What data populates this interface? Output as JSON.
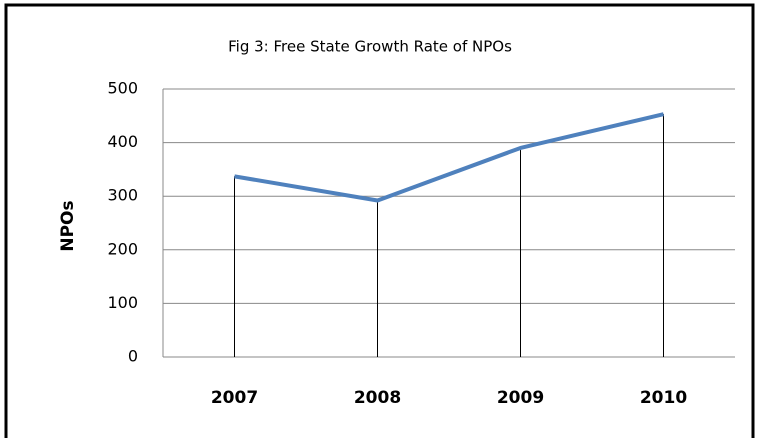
{
  "chart_data": {
    "type": "line",
    "title": "Fig 3: Free State Growth Rate of NPOs",
    "y_label": "NPOs",
    "categories": [
      "2007",
      "2008",
      "2009",
      "2010"
    ],
    "series": [
      {
        "name": "NPOs",
        "color": "#4f81bd",
        "values": [
          337,
          292,
          390,
          453
        ]
      }
    ],
    "ylim": [
      0,
      500
    ],
    "yticks": [
      0,
      100,
      200,
      300,
      400,
      500
    ],
    "grid": true,
    "drop_lines": true
  }
}
